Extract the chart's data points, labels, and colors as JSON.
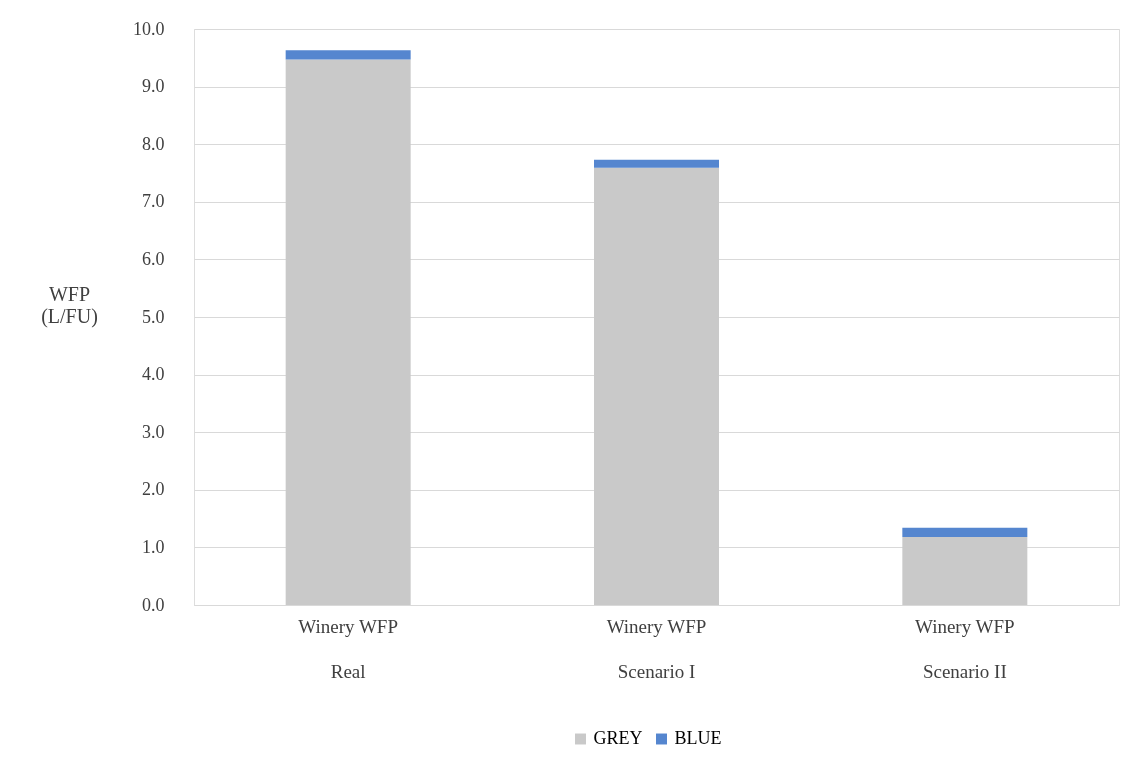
{
  "chart_data": {
    "type": "bar",
    "stacked": true,
    "ylabel": "WFP\n(L/FU)",
    "categories": [
      "Winery WFP\nReal",
      "Winery WFP\nScenario I",
      "Winery WFP\nScenario II"
    ],
    "series": [
      {
        "name": "GREY",
        "color": "#c9c9c9",
        "values": [
          9.47,
          7.59,
          1.18
        ]
      },
      {
        "name": "BLUE",
        "color": "#5586cf",
        "values": [
          0.16,
          0.14,
          0.16
        ]
      }
    ],
    "ylim": [
      0,
      10
    ],
    "yticks": [
      {
        "value": 0,
        "label": "0.0"
      },
      {
        "value": 1,
        "label": "1.0"
      },
      {
        "value": 2,
        "label": "2.0"
      },
      {
        "value": 3,
        "label": "3.0"
      },
      {
        "value": 4,
        "label": "4.0"
      },
      {
        "value": 5,
        "label": "5.0"
      },
      {
        "value": 6,
        "label": "6.0"
      },
      {
        "value": 7,
        "label": "7.0"
      },
      {
        "value": 8,
        "label": "8.0"
      },
      {
        "value": 9,
        "label": "9.0"
      },
      {
        "value": 10,
        "label": "10.0"
      }
    ],
    "grid": "y",
    "legend": "bottom"
  }
}
